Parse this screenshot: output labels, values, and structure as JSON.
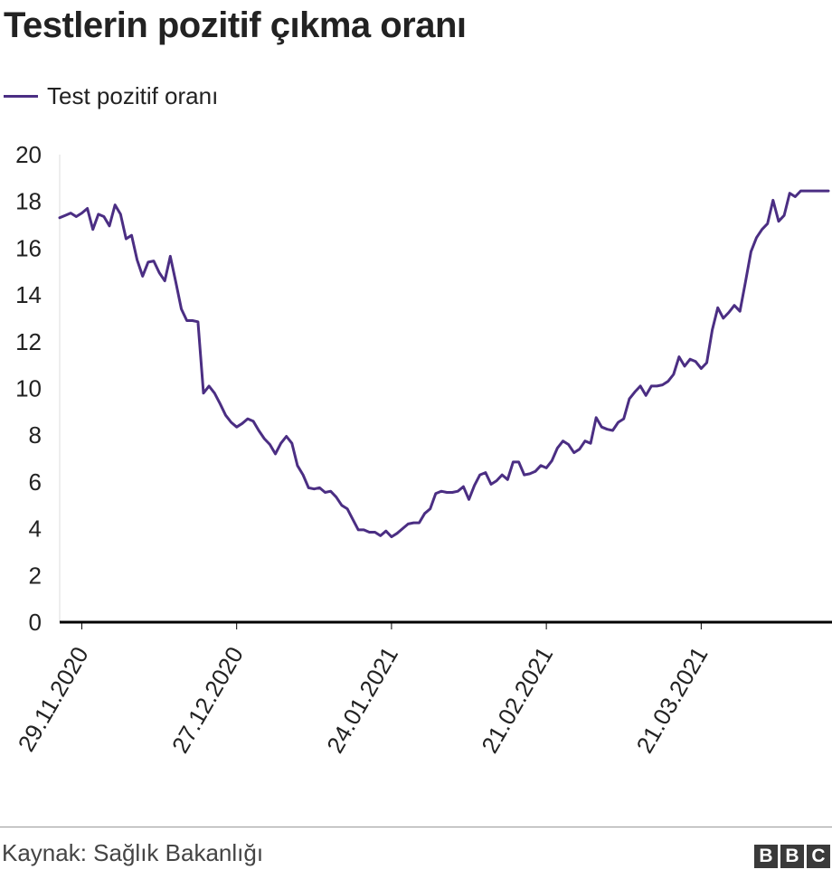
{
  "title": "Testlerin pozitif çıkma oranı",
  "source": "Kaynak: Sağlık Bakanlığı",
  "logo": [
    "B",
    "B",
    "C"
  ],
  "colors": {
    "line": "#4b2e83",
    "axis": "#000000",
    "gridline": "#dddddd",
    "text": "#222222"
  },
  "chart_data": {
    "type": "line",
    "title": "Testlerin pozitif çıkma oranı",
    "xlabel": "",
    "ylabel": "",
    "ylim": [
      0,
      20
    ],
    "yticks": [
      0,
      2,
      4,
      6,
      8,
      10,
      12,
      14,
      16,
      18,
      20
    ],
    "xtick_labels": [
      {
        "label": "29.11.2020",
        "x": "2020-11-29"
      },
      {
        "label": "27.12.2020",
        "x": "2020-12-27"
      },
      {
        "label": "24.01.2021",
        "x": "2021-01-24"
      },
      {
        "label": "21.02.2021",
        "x": "2021-02-21"
      },
      {
        "label": "21.03.2021",
        "x": "2021-03-21"
      }
    ],
    "xlim": [
      "2020-11-25",
      "2021-04-13"
    ],
    "legend_placement": "top-left",
    "series": [
      {
        "name": "Test pozitif oranı",
        "x": [
          "2020-11-25",
          "2020-11-26",
          "2020-11-27",
          "2020-11-28",
          "2020-11-29",
          "2020-11-30",
          "2020-12-01",
          "2020-12-02",
          "2020-12-03",
          "2020-12-04",
          "2020-12-05",
          "2020-12-06",
          "2020-12-07",
          "2020-12-08",
          "2020-12-09",
          "2020-12-10",
          "2020-12-11",
          "2020-12-12",
          "2020-12-13",
          "2020-12-14",
          "2020-12-15",
          "2020-12-16",
          "2020-12-17",
          "2020-12-18",
          "2020-12-19",
          "2020-12-20",
          "2020-12-21",
          "2020-12-22",
          "2020-12-23",
          "2020-12-24",
          "2020-12-25",
          "2020-12-26",
          "2020-12-27",
          "2020-12-28",
          "2020-12-29",
          "2020-12-30",
          "2020-12-31",
          "2021-01-01",
          "2021-01-02",
          "2021-01-03",
          "2021-01-04",
          "2021-01-05",
          "2021-01-06",
          "2021-01-07",
          "2021-01-08",
          "2021-01-09",
          "2021-01-10",
          "2021-01-11",
          "2021-01-12",
          "2021-01-13",
          "2021-01-14",
          "2021-01-15",
          "2021-01-16",
          "2021-01-17",
          "2021-01-18",
          "2021-01-19",
          "2021-01-20",
          "2021-01-21",
          "2021-01-22",
          "2021-01-23",
          "2021-01-24",
          "2021-01-25",
          "2021-01-26",
          "2021-01-27",
          "2021-01-28",
          "2021-01-29",
          "2021-01-30",
          "2021-01-31",
          "2021-02-01",
          "2021-02-02",
          "2021-02-03",
          "2021-02-04",
          "2021-02-05",
          "2021-02-06",
          "2021-02-07",
          "2021-02-08",
          "2021-02-09",
          "2021-02-10",
          "2021-02-11",
          "2021-02-12",
          "2021-02-13",
          "2021-02-14",
          "2021-02-15",
          "2021-02-16",
          "2021-02-17",
          "2021-02-18",
          "2021-02-19",
          "2021-02-20",
          "2021-02-21",
          "2021-02-22",
          "2021-02-23",
          "2021-02-24",
          "2021-02-25",
          "2021-02-26",
          "2021-02-27",
          "2021-02-28",
          "2021-03-01",
          "2021-03-02",
          "2021-03-03",
          "2021-03-04",
          "2021-03-05",
          "2021-03-06",
          "2021-03-07",
          "2021-03-08",
          "2021-03-09",
          "2021-03-10",
          "2021-03-11",
          "2021-03-12",
          "2021-03-13",
          "2021-03-14",
          "2021-03-15",
          "2021-03-16",
          "2021-03-17",
          "2021-03-18",
          "2021-03-19",
          "2021-03-20",
          "2021-03-21",
          "2021-03-22",
          "2021-03-23",
          "2021-03-24",
          "2021-03-25",
          "2021-03-26",
          "2021-03-27",
          "2021-03-28",
          "2021-03-29",
          "2021-03-30",
          "2021-03-31",
          "2021-04-01",
          "2021-04-02",
          "2021-04-03",
          "2021-04-04",
          "2021-04-05",
          "2021-04-06",
          "2021-04-07",
          "2021-04-08",
          "2021-04-09",
          "2021-04-10",
          "2021-04-11",
          "2021-04-12",
          "2021-04-13"
        ],
        "values": [
          17.3,
          17.4,
          17.5,
          17.35,
          17.5,
          17.7,
          16.8,
          17.45,
          17.35,
          16.95,
          17.85,
          17.45,
          16.4,
          16.55,
          15.5,
          14.8,
          15.4,
          15.45,
          14.95,
          14.6,
          15.65,
          14.55,
          13.4,
          12.9,
          12.9,
          12.85,
          9.8,
          10.1,
          9.8,
          9.35,
          8.85,
          8.55,
          8.35,
          8.5,
          8.7,
          8.6,
          8.2,
          7.85,
          7.6,
          7.2,
          7.65,
          7.95,
          7.65,
          6.7,
          6.3,
          5.75,
          5.7,
          5.75,
          5.55,
          5.6,
          5.35,
          5.0,
          4.85,
          4.4,
          3.95,
          3.95,
          3.85,
          3.85,
          3.7,
          3.9,
          3.65,
          3.8,
          4.0,
          4.2,
          4.25,
          4.25,
          4.65,
          4.85,
          5.5,
          5.6,
          5.55,
          5.55,
          5.6,
          5.8,
          5.25,
          5.85,
          6.3,
          6.4,
          5.9,
          6.05,
          6.3,
          6.1,
          6.85,
          6.85,
          6.3,
          6.35,
          6.45,
          6.7,
          6.6,
          6.9,
          7.45,
          7.75,
          7.6,
          7.25,
          7.4,
          7.75,
          7.65,
          8.75,
          8.35,
          8.25,
          8.2,
          8.55,
          8.7,
          9.55,
          9.85,
          10.1,
          9.7,
          10.1,
          10.1,
          10.15,
          10.3,
          10.6,
          11.35,
          10.95,
          11.25,
          11.15,
          10.85,
          11.1,
          12.5,
          13.45,
          13.0,
          13.25,
          13.55,
          13.3,
          14.55,
          15.85,
          16.45,
          16.8,
          17.05,
          18.05,
          17.15,
          17.4,
          18.35,
          18.2,
          18.45,
          18.45,
          18.45,
          18.45,
          18.45,
          18.45
        ]
      }
    ]
  }
}
